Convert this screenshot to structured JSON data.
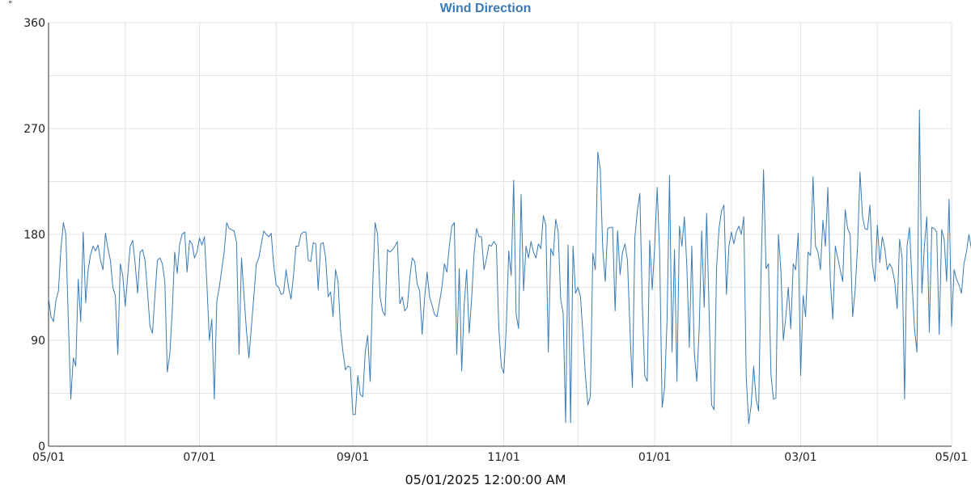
{
  "colors": {
    "series": "#3a7bb5",
    "title": "#3a7bb5",
    "grid": "#e3e3e3",
    "axis": "#333333"
  },
  "footer_label": "05/01/2025 12:00:00 AM",
  "chart_data": {
    "type": "line",
    "title": "Wind Direction",
    "unit_label": "°",
    "ylim": [
      0,
      360
    ],
    "y_ticks": [
      0,
      90,
      180,
      270,
      360
    ],
    "y_minor_grid": [
      45,
      135,
      225,
      315
    ],
    "x_range": [
      "2025-05-01",
      "2026-05-01"
    ],
    "x_ticks": [
      {
        "date": "2025-05-01",
        "label": "05/01"
      },
      {
        "date": "2025-07-01",
        "label": "07/01"
      },
      {
        "date": "2025-09-01",
        "label": "09/01"
      },
      {
        "date": "2025-11-01",
        "label": "11/01"
      },
      {
        "date": "2026-01-01",
        "label": "01/01"
      },
      {
        "date": "2026-03-01",
        "label": "03/01"
      },
      {
        "date": "2026-05-01",
        "label": "05/01"
      }
    ],
    "x_minor_grid": [
      "2025-06-01",
      "2025-08-01",
      "2025-10-01",
      "2025-12-01",
      "2026-02-01",
      "2026-04-01"
    ],
    "grid": true,
    "series": [
      {
        "start_date": "2025-05-01",
        "values": [
          126,
          110,
          106,
          124,
          132,
          168,
          190,
          180,
          106,
          40,
          75,
          68,
          142,
          106,
          182,
          122,
          150,
          163,
          170,
          166,
          171,
          158,
          150,
          181,
          168,
          158,
          135,
          128,
          78,
          155,
          145,
          119,
          145,
          170,
          175,
          155,
          130,
          165,
          167,
          158,
          131,
          102,
          96,
          128,
          158,
          160,
          155,
          140,
          63,
          78,
          115,
          165,
          147,
          172,
          180,
          182,
          148,
          175,
          172,
          160,
          165,
          177,
          171,
          178,
          138,
          90,
          108,
          40,
          123,
          135,
          150,
          165,
          190,
          185,
          184,
          183,
          173,
          78,
          160,
          128,
          98,
          75,
          102,
          128,
          155,
          160,
          172,
          183,
          180,
          178,
          181,
          154,
          137,
          135,
          129,
          130,
          150,
          135,
          125,
          145,
          170,
          170,
          180,
          182,
          182,
          158,
          157,
          173,
          172,
          133,
          172,
          173,
          160,
          127,
          131,
          110,
          150,
          140,
          100,
          80,
          65,
          68,
          67,
          27,
          27,
          60,
          44,
          42,
          80,
          94,
          55,
          135,
          190,
          180,
          127,
          115,
          111,
          167,
          165,
          167,
          170,
          174,
          121,
          127,
          115,
          118,
          143,
          160,
          157,
          138,
          132,
          95,
          126,
          148,
          127,
          120,
          112,
          110,
          122,
          135,
          155,
          148,
          170,
          187,
          190,
          78,
          151,
          64,
          120,
          150,
          96,
          125,
          164,
          185,
          178,
          178,
          150,
          159,
          171,
          170,
          174,
          171,
          100,
          68,
          62,
          100,
          166,
          145,
          226,
          112,
          100,
          214,
          132,
          170,
          160,
          174,
          165,
          160,
          172,
          168,
          196,
          188,
          80,
          168,
          162,
          193,
          182,
          125,
          113,
          20,
          171,
          20,
          170,
          130,
          135,
          127,
          95,
          60,
          35,
          42,
          164,
          150,
          250,
          235,
          168,
          140,
          185,
          186,
          186,
          115,
          183,
          146,
          165,
          172,
          158,
          100,
          50,
          178,
          200,
          215,
          120,
          60,
          55,
          175,
          133,
          170,
          220,
          165,
          33,
          50,
          107,
          230,
          80,
          167,
          55,
          187,
          170,
          195,
          153,
          84,
          170,
          80,
          55,
          100,
          183,
          118,
          198,
          114,
          35,
          31,
          151,
          185,
          200,
          205,
          129,
          170,
          182,
          172,
          182,
          187,
          180,
          195,
          59,
          19,
          35,
          68,
          40,
          30,
          149,
          235,
          151,
          155,
          61,
          40,
          41,
          180,
          150,
          90,
          110,
          135,
          100,
          155,
          150,
          181,
          60,
          128,
          110,
          165,
          162,
          229,
          170,
          165,
          150,
          192,
          170,
          220,
          140,
          108,
          170,
          160,
          150,
          140,
          201,
          185,
          180,
          110,
          132,
          170,
          233,
          195,
          185,
          184,
          205,
          155,
          140,
          188,
          156,
          178,
          168,
          150,
          155,
          151,
          140,
          117,
          176,
          160,
          40,
          170,
          186,
          140,
          100,
          80,
          286,
          130,
          170,
          195,
          97,
          186,
          185,
          182,
          95,
          184,
          176,
          140,
          210,
          102,
          150,
          142,
          137,
          130,
          155,
          165,
          180,
          168,
          169,
          170
        ]
      }
    ]
  }
}
